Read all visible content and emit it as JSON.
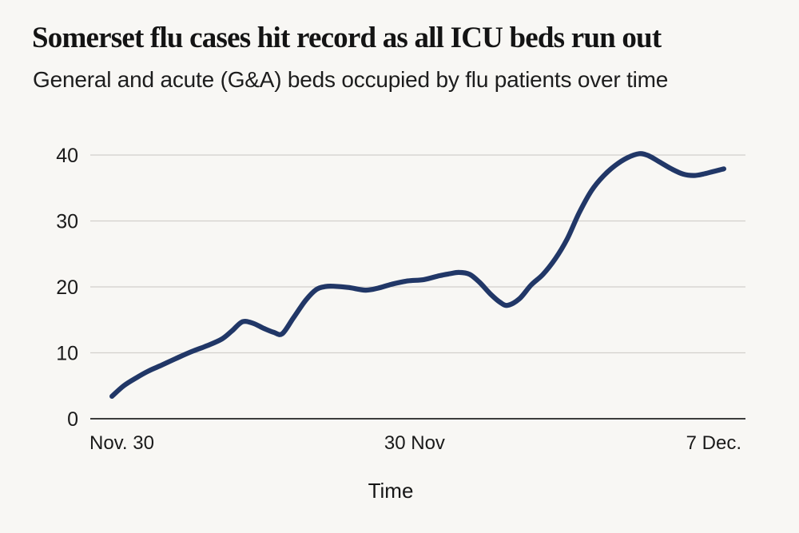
{
  "header": {
    "title": "Somerset flu cases hit record as all ICU beds run out",
    "subtitle": "General and acute (G&A) beds occupied by flu patients over time"
  },
  "chart_data": {
    "type": "line",
    "title": "Somerset flu cases hit record as all ICU beds run out",
    "subtitle": "General and acute (G&A) beds occupied by flu patients over time",
    "xlabel": "Time",
    "ylabel": "",
    "ylim": [
      0,
      40
    ],
    "y_ticks": [
      0,
      10,
      20,
      30,
      40
    ],
    "x_ticks": [
      {
        "label": "Nov. 30",
        "pos": 0.0
      },
      {
        "label": "30 Nov",
        "pos": 0.495
      },
      {
        "label": "7 Dec.",
        "pos": 1.0
      }
    ],
    "grid": "horizontal",
    "legend": "none",
    "series": [
      {
        "name": "G&A beds occupied by flu patients",
        "points": [
          [
            0.033,
            3.4
          ],
          [
            0.051,
            5.0
          ],
          [
            0.07,
            6.2
          ],
          [
            0.088,
            7.2
          ],
          [
            0.106,
            8.0
          ],
          [
            0.13,
            9.1
          ],
          [
            0.155,
            10.2
          ],
          [
            0.179,
            11.1
          ],
          [
            0.201,
            12.1
          ],
          [
            0.216,
            13.3
          ],
          [
            0.232,
            14.7
          ],
          [
            0.248,
            14.5
          ],
          [
            0.265,
            13.7
          ],
          [
            0.28,
            13.1
          ],
          [
            0.293,
            12.9
          ],
          [
            0.31,
            15.3
          ],
          [
            0.329,
            18.0
          ],
          [
            0.345,
            19.6
          ],
          [
            0.359,
            20.05
          ],
          [
            0.371,
            20.1
          ],
          [
            0.395,
            19.9
          ],
          [
            0.42,
            19.5
          ],
          [
            0.439,
            19.8
          ],
          [
            0.46,
            20.4
          ],
          [
            0.484,
            20.9
          ],
          [
            0.509,
            21.1
          ],
          [
            0.533,
            21.7
          ],
          [
            0.549,
            22.0
          ],
          [
            0.563,
            22.2
          ],
          [
            0.579,
            21.9
          ],
          [
            0.594,
            20.7
          ],
          [
            0.611,
            18.9
          ],
          [
            0.625,
            17.7
          ],
          [
            0.637,
            17.2
          ],
          [
            0.655,
            18.2
          ],
          [
            0.673,
            20.3
          ],
          [
            0.691,
            21.9
          ],
          [
            0.71,
            24.3
          ],
          [
            0.728,
            27.3
          ],
          [
            0.746,
            31.2
          ],
          [
            0.765,
            34.6
          ],
          [
            0.783,
            36.8
          ],
          [
            0.801,
            38.4
          ],
          [
            0.82,
            39.6
          ],
          [
            0.838,
            40.2
          ],
          [
            0.852,
            39.9
          ],
          [
            0.868,
            39.0
          ],
          [
            0.887,
            37.9
          ],
          [
            0.905,
            37.1
          ],
          [
            0.921,
            36.9
          ],
          [
            0.935,
            37.1
          ],
          [
            0.951,
            37.5
          ],
          [
            0.967,
            37.9
          ]
        ]
      }
    ]
  },
  "colors": {
    "background": "#f8f7f4",
    "line": "#213767",
    "grid": "#d2d0cc",
    "axis": "#3c3c3c",
    "text": "#1a1a1a"
  }
}
